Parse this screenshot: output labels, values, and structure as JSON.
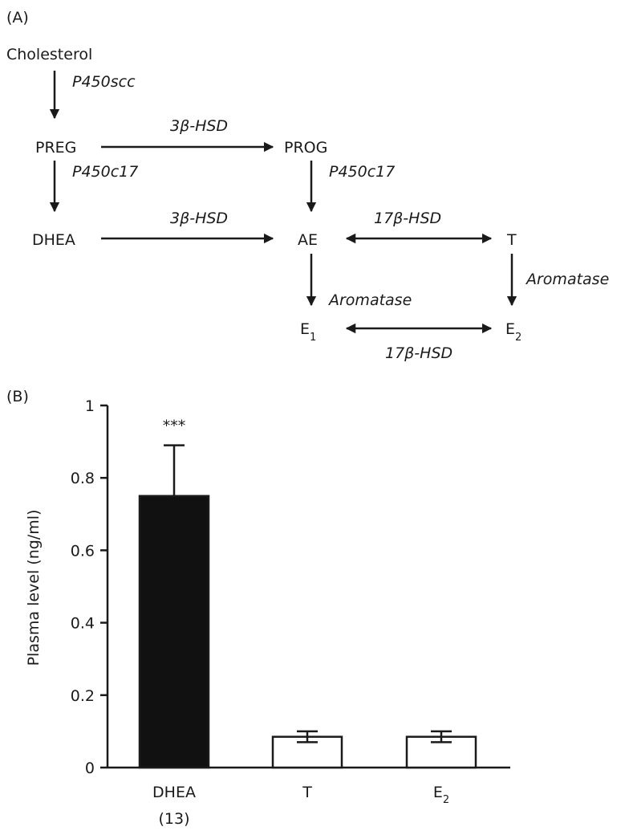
{
  "panel_a": {
    "label": "(A)",
    "nodes": {
      "cholesterol": "Cholesterol",
      "preg": "PREG",
      "prog": "PROG",
      "dhea": "DHEA",
      "ae": "AE",
      "t": "T",
      "e1": "E",
      "e1_sub": "1",
      "e2": "E",
      "e2_sub": "2"
    },
    "enzymes": {
      "chol_preg": "P450scc",
      "preg_prog": "3β-HSD",
      "preg_dhea": "P450c17",
      "prog_ae": "P450c17",
      "dhea_ae": "3β-HSD",
      "ae_t": "17β-HSD",
      "ae_e1": "Aromatase",
      "t_e2": "Aromatase",
      "e1_e2": "17β-HSD"
    }
  },
  "panel_b": {
    "label": "(B)"
  },
  "chart_data": {
    "type": "bar",
    "categories": [
      "DHEA",
      "T",
      "E2"
    ],
    "category_labels": [
      {
        "main": "DHEA",
        "sub": "",
        "note": "(13)"
      },
      {
        "main": "T",
        "sub": "",
        "note": ""
      },
      {
        "main": "E",
        "sub": "2",
        "note": ""
      }
    ],
    "values": [
      0.75,
      0.085,
      0.085
    ],
    "errors": [
      0.14,
      0.015,
      0.015
    ],
    "bar_fills": [
      "#111111",
      "#ffffff",
      "#ffffff"
    ],
    "annotations": [
      "***",
      "",
      ""
    ],
    "ylabel": "Plasma level (ng/ml)",
    "xlabel": "",
    "ylim": [
      0,
      1
    ],
    "yticks": [
      0,
      0.2,
      0.4,
      0.6,
      0.8,
      1
    ],
    "ytick_labels": [
      "0",
      "0.2",
      "0.4",
      "0.6",
      "0.8",
      "1"
    ],
    "grid": false
  }
}
